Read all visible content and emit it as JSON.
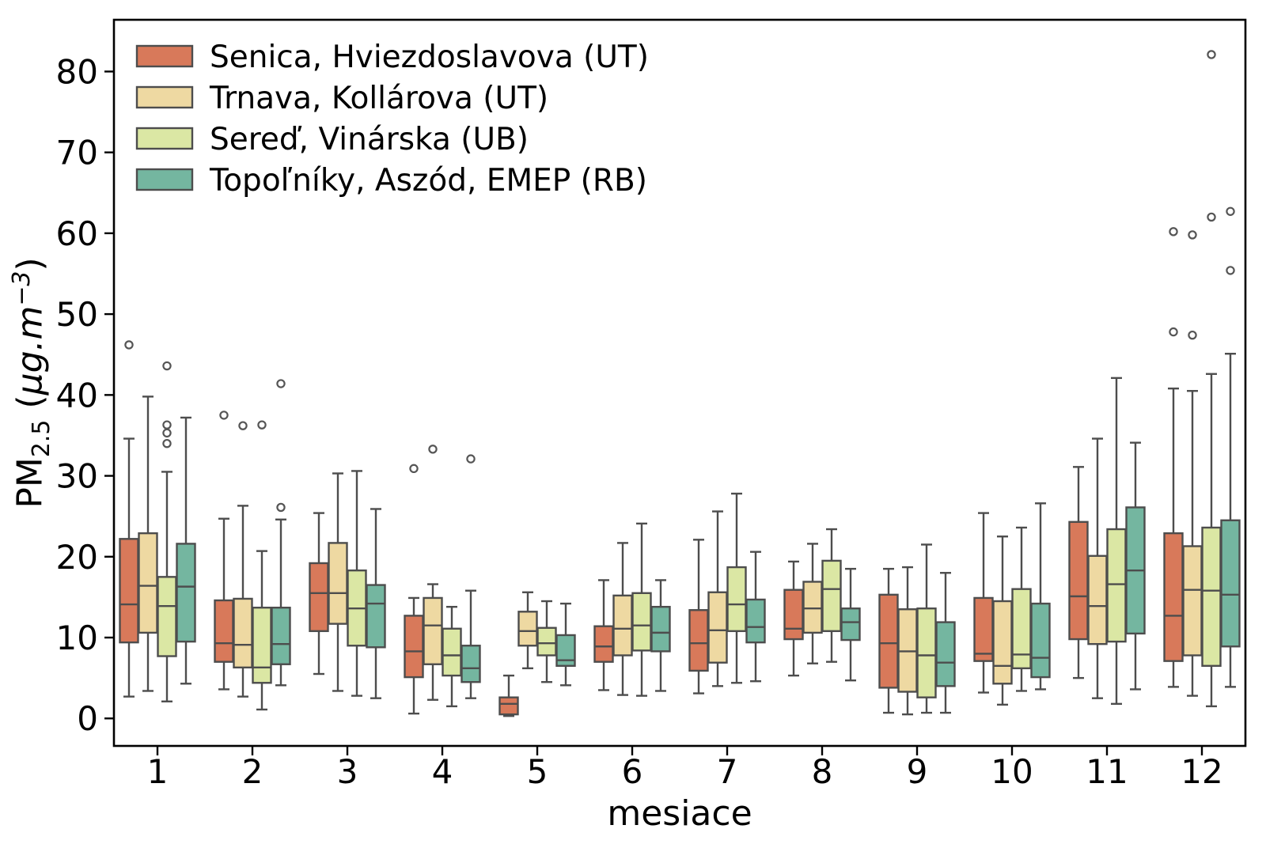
{
  "figure": {
    "xlabel": "mesiace",
    "ylabel_plain": "PM2.5 (µg.m−3)",
    "ylabel_parts": [
      {
        "text": "PM",
        "style": "normal"
      },
      {
        "text": "2.5",
        "style": "sub"
      },
      {
        "text": "  (",
        "style": "normal"
      },
      {
        "text": "µg.m",
        "style": "italic"
      },
      {
        "text": "−3",
        "style": "sup-italic"
      },
      {
        "text": ")",
        "style": "normal"
      }
    ]
  },
  "chart_data": {
    "type": "boxplot",
    "title": "",
    "xlabel": "mesiace",
    "ylabel": "PM2.5 (µg.m−3)",
    "categories": [
      "1",
      "2",
      "3",
      "4",
      "5",
      "6",
      "7",
      "8",
      "9",
      "10",
      "11",
      "12"
    ],
    "yticks": [
      0,
      10,
      20,
      30,
      40,
      50,
      60,
      70,
      80
    ],
    "ylim": [
      -3.4,
      86.4
    ],
    "grid": false,
    "legend_position": "upper left",
    "box_format": [
      "whisker_low",
      "q1",
      "median",
      "q3",
      "whisker_high",
      "outliers"
    ],
    "colors": {
      "box_edge": "#4d4d4d",
      "whisker": "#4d4d4d",
      "median": "#4d4d4d",
      "outlier_edge": "#555555",
      "spine": "#000000"
    },
    "series": [
      {
        "name": "Senica, Hviezdoslavova (UT)",
        "color": "#d8795a",
        "boxes": [
          [
            2.7,
            9.4,
            14.1,
            22.2,
            34.6,
            [
              46.2
            ]
          ],
          [
            3.6,
            7.0,
            9.3,
            14.6,
            24.7,
            [
              37.5
            ]
          ],
          [
            5.5,
            10.8,
            15.5,
            19.2,
            25.4,
            []
          ],
          [
            0.6,
            5.1,
            8.3,
            12.7,
            14.9,
            [
              30.9
            ]
          ],
          [
            0.3,
            0.5,
            1.8,
            2.6,
            5.3,
            []
          ],
          [
            3.5,
            7.0,
            8.9,
            11.4,
            17.1,
            []
          ],
          [
            3.1,
            5.9,
            9.3,
            13.4,
            22.1,
            []
          ],
          [
            5.3,
            9.8,
            11.1,
            15.9,
            19.4,
            []
          ],
          [
            0.7,
            3.8,
            9.3,
            15.3,
            18.5,
            []
          ],
          [
            3.2,
            7.1,
            8.0,
            14.9,
            25.4,
            []
          ],
          [
            5.0,
            9.8,
            15.1,
            24.3,
            31.1,
            []
          ],
          [
            3.9,
            7.1,
            12.7,
            22.9,
            40.8,
            [
              47.8,
              60.2
            ]
          ]
        ]
      },
      {
        "name": "Trnava, Kollárova (UT)",
        "color": "#eed9a2",
        "boxes": [
          [
            3.4,
            10.6,
            16.4,
            22.9,
            39.8,
            []
          ],
          [
            2.7,
            6.3,
            9.1,
            14.8,
            26.3,
            [
              36.2
            ]
          ],
          [
            3.4,
            11.7,
            15.5,
            21.7,
            30.3,
            []
          ],
          [
            2.3,
            6.7,
            11.5,
            14.9,
            16.6,
            [
              33.3
            ]
          ],
          [
            6.2,
            9.0,
            10.8,
            13.2,
            15.6,
            []
          ],
          [
            2.9,
            7.8,
            11.1,
            15.2,
            21.7,
            []
          ],
          [
            4.0,
            6.9,
            10.9,
            15.6,
            25.6,
            []
          ],
          [
            6.8,
            10.6,
            13.6,
            16.9,
            21.6,
            []
          ],
          [
            0.5,
            3.3,
            8.3,
            13.5,
            18.7,
            []
          ],
          [
            1.7,
            4.3,
            6.5,
            14.5,
            22.5,
            []
          ],
          [
            2.5,
            9.2,
            13.9,
            20.1,
            34.6,
            []
          ],
          [
            2.8,
            7.8,
            15.9,
            21.3,
            40.5,
            [
              47.4,
              59.8
            ]
          ]
        ]
      },
      {
        "name": "Sereď, Vinárska (UB)",
        "color": "#dbe7a4",
        "boxes": [
          [
            2.1,
            7.7,
            13.9,
            17.5,
            30.5,
            [
              34.0,
              35.3,
              36.3,
              43.6
            ]
          ],
          [
            1.1,
            4.4,
            6.3,
            13.7,
            20.7,
            [
              36.3
            ]
          ],
          [
            2.8,
            9.0,
            13.6,
            18.3,
            30.6,
            []
          ],
          [
            1.5,
            5.3,
            7.8,
            11.1,
            13.8,
            []
          ],
          [
            4.5,
            7.8,
            9.3,
            11.2,
            14.5,
            []
          ],
          [
            2.8,
            8.4,
            11.5,
            15.5,
            24.1,
            []
          ],
          [
            4.4,
            10.8,
            14.1,
            18.7,
            27.8,
            []
          ],
          [
            7.0,
            10.8,
            16.0,
            19.5,
            23.4,
            []
          ],
          [
            0.7,
            2.6,
            7.8,
            13.6,
            21.5,
            []
          ],
          [
            3.4,
            6.2,
            7.9,
            16.0,
            23.6,
            []
          ],
          [
            1.8,
            9.5,
            16.6,
            23.4,
            42.1,
            []
          ],
          [
            1.5,
            6.5,
            15.8,
            23.6,
            42.6,
            [
              62.0,
              82.1
            ]
          ]
        ]
      },
      {
        "name": "Topoľníky, Aszód, EMEP (RB)",
        "color": "#74b6a0",
        "boxes": [
          [
            4.3,
            9.5,
            16.3,
            21.6,
            37.2,
            []
          ],
          [
            4.1,
            6.7,
            9.2,
            13.7,
            24.6,
            [
              26.1,
              41.4
            ]
          ],
          [
            2.5,
            8.8,
            14.2,
            16.5,
            25.9,
            []
          ],
          [
            2.5,
            4.5,
            6.2,
            9.0,
            15.8,
            [
              32.1
            ]
          ],
          [
            4.1,
            6.5,
            7.2,
            10.3,
            14.2,
            []
          ],
          [
            3.4,
            8.3,
            10.6,
            13.8,
            17.1,
            []
          ],
          [
            4.6,
            9.4,
            11.3,
            14.7,
            20.6,
            []
          ],
          [
            4.7,
            9.7,
            11.9,
            13.6,
            18.5,
            []
          ],
          [
            0.7,
            4.0,
            6.9,
            11.9,
            18.0,
            []
          ],
          [
            3.6,
            5.1,
            7.5,
            14.2,
            26.6,
            []
          ],
          [
            3.6,
            10.5,
            18.3,
            26.1,
            34.1,
            []
          ],
          [
            3.9,
            8.9,
            15.3,
            24.5,
            45.1,
            [
              55.4,
              62.7
            ]
          ]
        ]
      }
    ]
  }
}
